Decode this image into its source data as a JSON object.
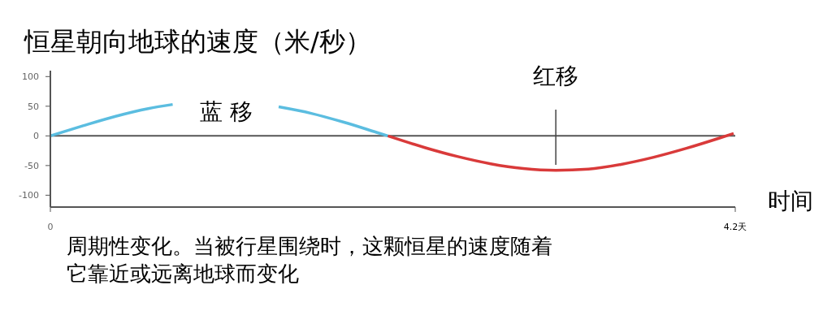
{
  "chart_data": {
    "type": "line",
    "title": "恒星朝向地球的速度（米/秒）",
    "xlabel": "时间",
    "xlim": [
      0,
      4.2
    ],
    "xticks": [
      0,
      {
        "value": 4.2,
        "label": "4.2天"
      }
    ],
    "ylim": [
      -120,
      110
    ],
    "yticks": [
      -100,
      -50,
      0,
      50,
      100
    ],
    "grid": false,
    "marker": "none",
    "line_style": "solid",
    "ref_lines": [
      {
        "axis": "y",
        "value": 0,
        "color": "#555555"
      }
    ],
    "series": [
      {
        "color": "#5bbde0",
        "x": [
          0,
          0.2,
          0.4,
          0.6,
          0.75,
          0.9,
          1.0,
          1.1,
          1.2,
          1.3,
          1.4,
          1.6,
          1.8,
          2.0,
          2.07
        ],
        "values": [
          0,
          17,
          33,
          46,
          53,
          null,
          null,
          null,
          null,
          null,
          49,
          38,
          23,
          6,
          0
        ]
      },
      {
        "color": "#d93a3a",
        "x": [
          2.07,
          2.3,
          2.5,
          2.7,
          2.9,
          3.1,
          3.3,
          3.5,
          3.7,
          3.9,
          4.1,
          4.19
        ],
        "values": [
          0,
          -20,
          -35,
          -47,
          -55,
          -58,
          -56,
          -48,
          -36,
          -21,
          -4,
          4
        ]
      }
    ],
    "annotations": [
      "蓝 移",
      "红移",
      "周期性变化。当被行星围绕时，这颗恒星的速度随着它靠近或远离地球而变化"
    ]
  }
}
